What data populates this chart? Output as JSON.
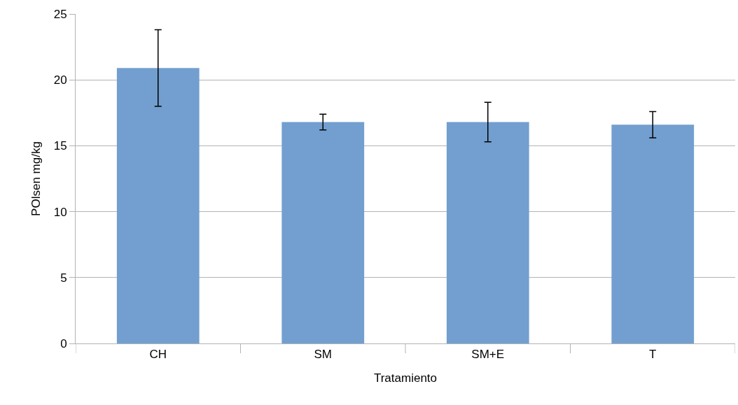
{
  "chart_data": {
    "type": "bar",
    "xlabel": "Tratamiento",
    "ylabel": "POlsen mg/kg",
    "categories": [
      "CH",
      "SM",
      "SM+E",
      "T"
    ],
    "values": [
      20.9,
      16.8,
      16.8,
      16.6
    ],
    "errors": [
      2.9,
      0.6,
      1.5,
      1.0
    ],
    "color": "#729fcf",
    "ylim": [
      0,
      25
    ],
    "yticks": [
      0,
      5,
      10,
      15,
      20,
      25
    ],
    "grid": "y"
  }
}
